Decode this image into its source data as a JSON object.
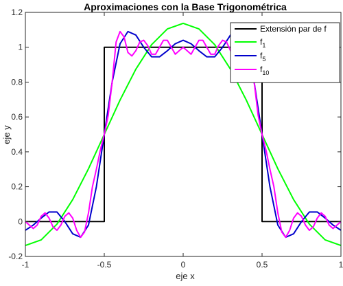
{
  "chart_data": {
    "type": "line",
    "title": "Aproximaciones con la Base Trigonométrica",
    "xlabel": "eje x",
    "ylabel": "eje y",
    "xlim": [
      -1,
      1
    ],
    "ylim": [
      -0.2,
      1.2
    ],
    "xticks": [
      -1,
      -0.5,
      0,
      0.5,
      1
    ],
    "xtick_labels": [
      "-1",
      "-0.5",
      "0",
      "0.5",
      "1"
    ],
    "yticks": [
      -0.2,
      0,
      0.2,
      0.4,
      0.6,
      0.8,
      1,
      1.2
    ],
    "ytick_labels": [
      "-0.2",
      "0",
      "0.2",
      "0.4",
      "0.6",
      "0.8",
      "1",
      "1.2"
    ],
    "grid": false,
    "legend_position": "top-right",
    "series": [
      {
        "name": "Extensión par de f",
        "legend_base": "Extensión par de f",
        "legend_sub": "",
        "color": "#000000",
        "x": [
          -1,
          -0.5,
          -0.5,
          0.5,
          0.5,
          1
        ],
        "y": [
          0,
          0,
          1,
          1,
          0,
          0
        ]
      },
      {
        "name": "f1",
        "legend_base": "f",
        "legend_sub": "1",
        "color": "#00ff00",
        "x": [
          -1,
          -0.9,
          -0.8,
          -0.7,
          -0.6,
          -0.5,
          -0.4,
          -0.3,
          -0.2,
          -0.1,
          0,
          0.1,
          0.2,
          0.3,
          0.4,
          0.5,
          0.6,
          0.7,
          0.8,
          0.9,
          1
        ],
        "y": [
          -0.137,
          -0.105,
          -0.015,
          0.126,
          0.303,
          0.5,
          0.697,
          0.874,
          1.015,
          1.105,
          1.137,
          1.105,
          1.015,
          0.874,
          0.697,
          0.5,
          0.303,
          0.126,
          -0.015,
          -0.105,
          -0.137
        ]
      },
      {
        "name": "f5",
        "legend_base": "f",
        "legend_sub": "5",
        "color": "#0000cc",
        "x": [
          -1,
          -0.95,
          -0.9,
          -0.85,
          -0.8,
          -0.75,
          -0.7,
          -0.65,
          -0.6,
          -0.55,
          -0.5,
          -0.45,
          -0.4,
          -0.35,
          -0.3,
          -0.25,
          -0.2,
          -0.15,
          -0.1,
          -0.05,
          0,
          0.05,
          0.1,
          0.15,
          0.2,
          0.25,
          0.3,
          0.35,
          0.4,
          0.45,
          0.5,
          0.55,
          0.6,
          0.65,
          0.7,
          0.75,
          0.8,
          0.85,
          0.9,
          0.95,
          1
        ],
        "y": [
          -0.05,
          -0.02,
          0.02,
          0.055,
          0.055,
          0.0,
          -0.07,
          -0.09,
          -0.02,
          0.2,
          0.5,
          0.8,
          1.02,
          1.09,
          1.07,
          1.0,
          0.945,
          0.945,
          0.98,
          1.02,
          1.04,
          1.02,
          0.98,
          0.945,
          0.945,
          1.0,
          1.07,
          1.09,
          1.02,
          0.8,
          0.5,
          0.2,
          -0.02,
          -0.09,
          -0.07,
          0.0,
          0.055,
          0.055,
          0.02,
          -0.02,
          -0.05
        ]
      },
      {
        "name": "f10",
        "legend_base": "f",
        "legend_sub": "10",
        "color": "#ff00ff",
        "x": [
          -1,
          -0.975,
          -0.95,
          -0.925,
          -0.9,
          -0.875,
          -0.85,
          -0.825,
          -0.8,
          -0.775,
          -0.75,
          -0.725,
          -0.7,
          -0.675,
          -0.65,
          -0.625,
          -0.6,
          -0.575,
          -0.55,
          -0.525,
          -0.5,
          -0.475,
          -0.45,
          -0.425,
          -0.4,
          -0.375,
          -0.35,
          -0.325,
          -0.3,
          -0.275,
          -0.25,
          -0.225,
          -0.2,
          -0.175,
          -0.15,
          -0.125,
          -0.1,
          -0.075,
          -0.05,
          -0.025,
          0,
          0.025,
          0.05,
          0.075,
          0.1,
          0.125,
          0.15,
          0.175,
          0.2,
          0.225,
          0.25,
          0.275,
          0.3,
          0.325,
          0.35,
          0.375,
          0.4,
          0.425,
          0.45,
          0.475,
          0.5,
          0.525,
          0.55,
          0.575,
          0.6,
          0.625,
          0.65,
          0.675,
          0.7,
          0.725,
          0.75,
          0.775,
          0.8,
          0.825,
          0.85,
          0.875,
          0.9,
          0.925,
          0.95,
          0.975,
          1
        ],
        "y": [
          0.0,
          -0.02,
          -0.04,
          -0.02,
          0.03,
          0.05,
          0.02,
          -0.03,
          -0.05,
          -0.02,
          0.03,
          0.05,
          0.02,
          -0.05,
          -0.09,
          -0.06,
          0.05,
          0.2,
          0.3,
          0.41,
          0.5,
          0.61,
          0.8,
          1.03,
          1.09,
          1.06,
          0.97,
          0.95,
          0.98,
          1.03,
          1.04,
          1.01,
          0.96,
          0.96,
          1.0,
          1.04,
          1.04,
          1.0,
          0.96,
          0.98,
          1.0,
          0.98,
          0.96,
          1.0,
          1.04,
          1.04,
          1.0,
          0.96,
          0.96,
          1.01,
          1.04,
          1.03,
          0.98,
          0.95,
          0.97,
          1.06,
          1.09,
          1.03,
          0.8,
          0.61,
          0.5,
          0.41,
          0.3,
          0.2,
          0.05,
          -0.06,
          -0.09,
          -0.05,
          0.02,
          0.05,
          0.03,
          -0.02,
          -0.05,
          -0.03,
          0.02,
          0.05,
          0.03,
          -0.02,
          -0.04,
          -0.02,
          0.0
        ]
      }
    ]
  }
}
